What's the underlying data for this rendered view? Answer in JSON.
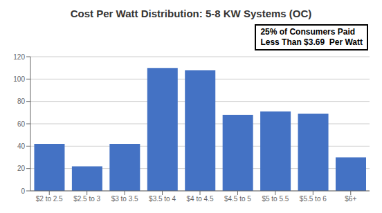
{
  "chart_data": {
    "type": "bar",
    "title": "Cost Per Watt Distribution: 5-8 KW Systems (OC)",
    "categories": [
      "$2 to 2.5",
      "$2.5 to 3",
      "$3 to 3.5",
      "$3.5 to 4",
      "$4 to 4.5",
      "$4.5 to 5",
      "$5 to 5.5",
      "$5.5 to 6",
      "$6+"
    ],
    "values": [
      42,
      22,
      42,
      110,
      108,
      68,
      71,
      69,
      30
    ],
    "color": "#4472C4",
    "ylim": [
      0,
      120
    ],
    "yticks": [
      0,
      20,
      40,
      60,
      80,
      100,
      120
    ],
    "grid": true,
    "annotations": [
      "25% of Consumers Paid\nLess Than $3.69  Per Watt"
    ]
  }
}
